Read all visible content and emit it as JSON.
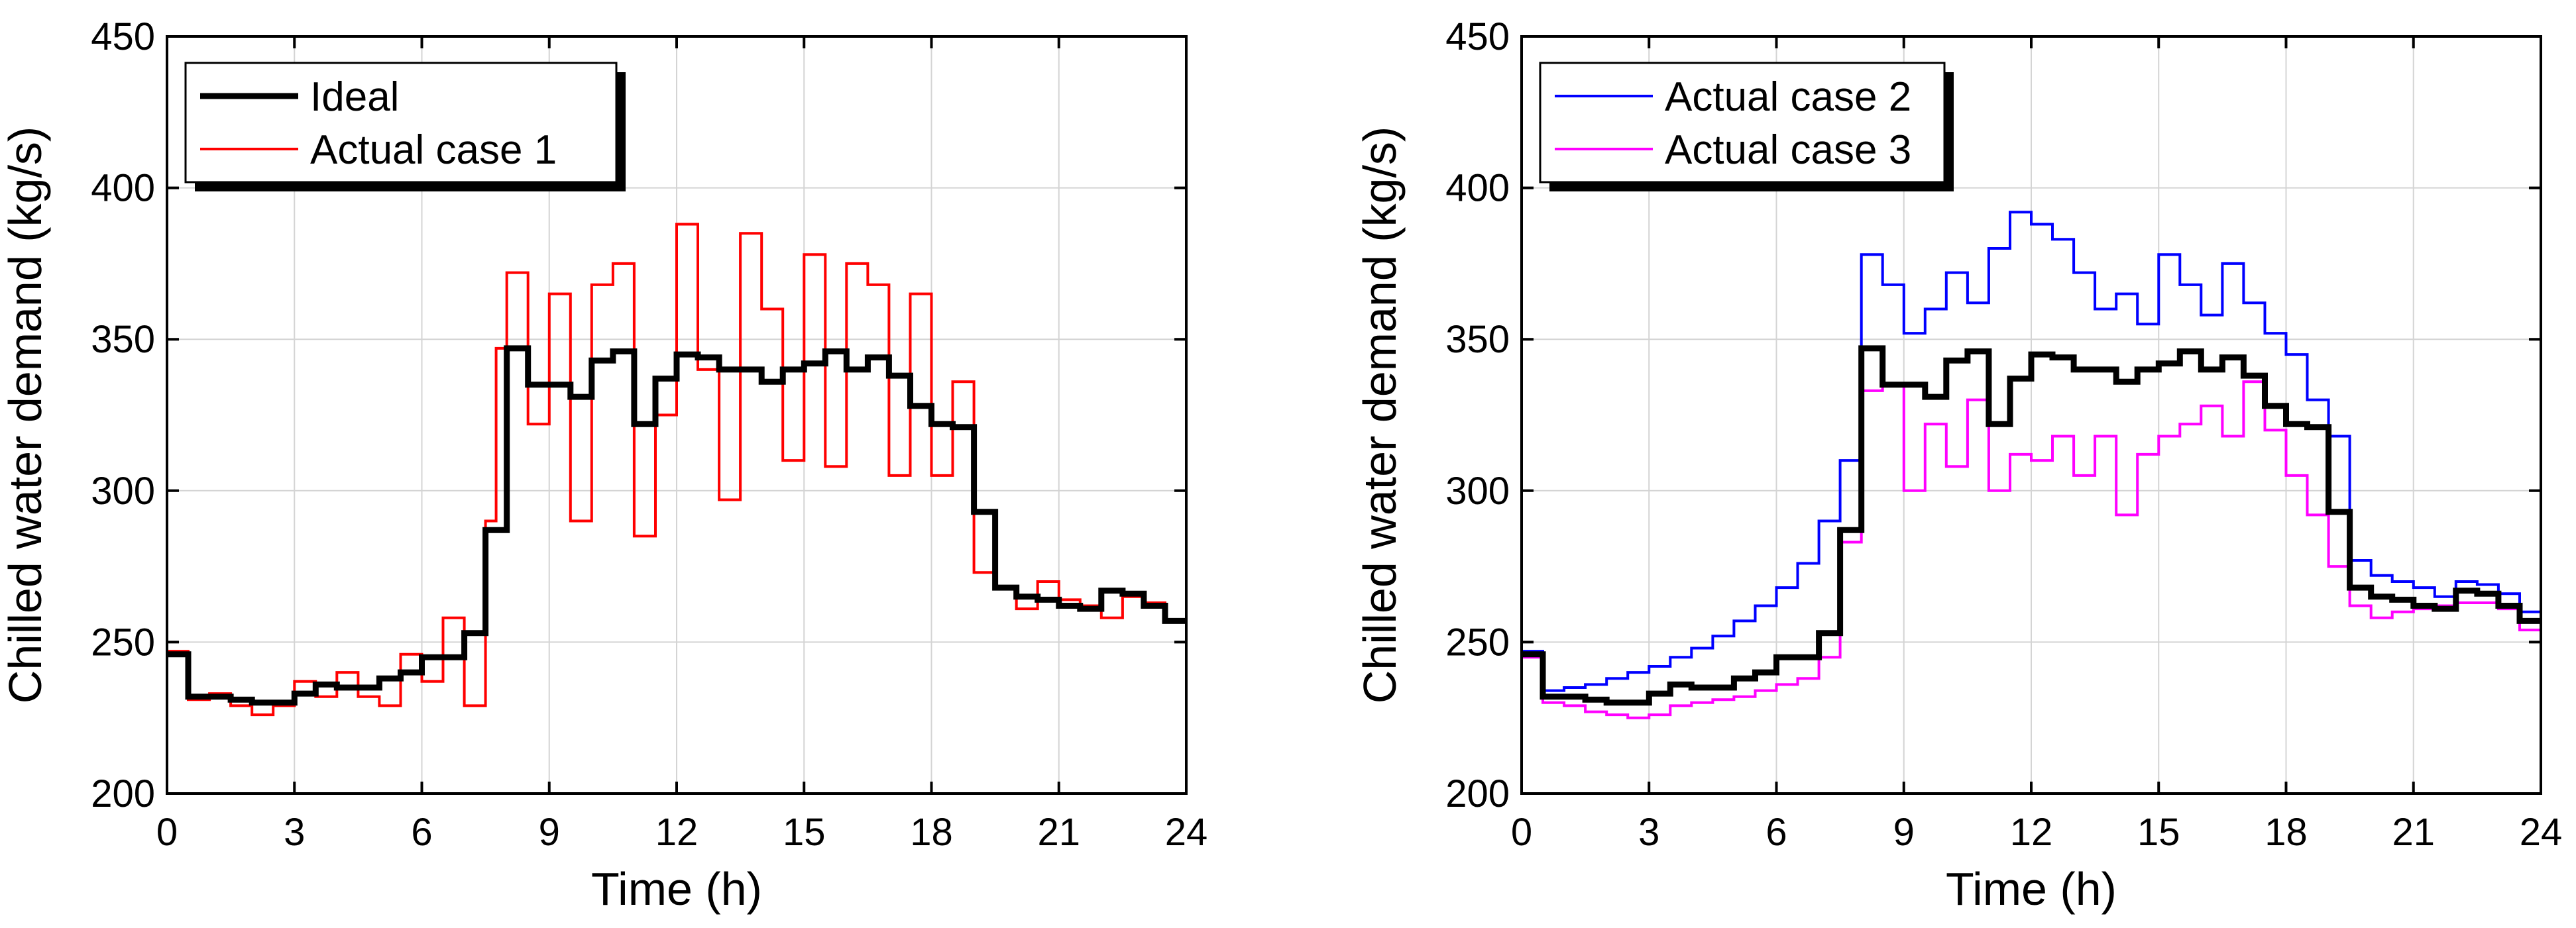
{
  "chart_data": [
    {
      "type": "line",
      "step": true,
      "xlabel": "Time (h)",
      "ylabel": "Chilled water demand (kg/s)",
      "xlim": [
        0,
        24
      ],
      "ylim": [
        200,
        450
      ],
      "xticks": [
        0,
        3,
        6,
        9,
        12,
        15,
        18,
        21,
        24
      ],
      "yticks": [
        200,
        250,
        300,
        350,
        400,
        450
      ],
      "grid": true,
      "legend_position": "top-left",
      "series": [
        {
          "name": "Ideal",
          "color": "#000000",
          "x": [
            0,
            0.5,
            1,
            1.5,
            2,
            2.5,
            3,
            3.5,
            4,
            4.5,
            5,
            5.5,
            6,
            6.5,
            7,
            7.5,
            8,
            8.5,
            9,
            9.5,
            10,
            10.5,
            11,
            11.5,
            12,
            12.5,
            13,
            13.5,
            14,
            14.5,
            15,
            15.5,
            16,
            16.5,
            17,
            17.5,
            18,
            18.5,
            19,
            19.5,
            20,
            20.5,
            21,
            21.5,
            22,
            22.5,
            23,
            23.5
          ],
          "y": [
            246,
            232,
            232,
            231,
            230,
            230,
            233,
            236,
            235,
            235,
            238,
            240,
            245,
            245,
            253,
            287,
            347,
            335,
            335,
            331,
            343,
            346,
            322,
            337,
            345,
            344,
            340,
            340,
            336,
            340,
            342,
            346,
            340,
            344,
            338,
            328,
            322,
            321,
            293,
            268,
            265,
            264,
            262,
            261,
            267,
            266,
            262,
            257
          ]
        },
        {
          "name": "Actual case 1",
          "color": "#ff0000",
          "x": [
            0,
            0.5,
            1,
            1.5,
            2,
            2.5,
            3,
            3.5,
            4,
            4.5,
            5,
            5.5,
            6,
            6.5,
            7,
            7.5,
            7.75,
            8,
            8.5,
            9,
            9.5,
            10,
            10.5,
            11,
            11.5,
            12,
            12.5,
            13,
            13.5,
            14,
            14.5,
            15,
            15.5,
            16,
            16.5,
            17,
            17.5,
            18,
            18.5,
            19,
            19.5,
            20,
            20.5,
            21,
            21.5,
            22,
            22.5,
            23,
            23.5
          ],
          "y": [
            247,
            231,
            233,
            229,
            226,
            229,
            237,
            232,
            240,
            232,
            229,
            246,
            237,
            258,
            229,
            290,
            347,
            372,
            322,
            365,
            290,
            368,
            375,
            285,
            325,
            388,
            340,
            297,
            385,
            360,
            310,
            378,
            308,
            375,
            368,
            305,
            365,
            305,
            336,
            273,
            268,
            261,
            270,
            264,
            262,
            258,
            265,
            263,
            257
          ]
        }
      ]
    },
    {
      "type": "line",
      "step": true,
      "xlabel": "Time (h)",
      "ylabel": "Chilled water demand (kg/s)",
      "xlim": [
        0,
        24
      ],
      "ylim": [
        200,
        450
      ],
      "xticks": [
        0,
        3,
        6,
        9,
        12,
        15,
        18,
        21,
        24
      ],
      "yticks": [
        200,
        250,
        300,
        350,
        400,
        450
      ],
      "grid": true,
      "legend_position": "top-left",
      "series": [
        {
          "name": "",
          "color": "#000000",
          "x": [
            0,
            0.5,
            1,
            1.5,
            2,
            2.5,
            3,
            3.5,
            4,
            4.5,
            5,
            5.5,
            6,
            6.5,
            7,
            7.5,
            8,
            8.5,
            9,
            9.5,
            10,
            10.5,
            11,
            11.5,
            12,
            12.5,
            13,
            13.5,
            14,
            14.5,
            15,
            15.5,
            16,
            16.5,
            17,
            17.5,
            18,
            18.5,
            19,
            19.5,
            20,
            20.5,
            21,
            21.5,
            22,
            22.5,
            23,
            23.5
          ],
          "y": [
            246,
            232,
            232,
            231,
            230,
            230,
            233,
            236,
            235,
            235,
            238,
            240,
            245,
            245,
            253,
            287,
            347,
            335,
            335,
            331,
            343,
            346,
            322,
            337,
            345,
            344,
            340,
            340,
            336,
            340,
            342,
            346,
            340,
            344,
            338,
            328,
            322,
            321,
            293,
            268,
            265,
            264,
            262,
            261,
            267,
            266,
            262,
            257
          ]
        },
        {
          "name": "Actual case 2",
          "color": "#0000ff",
          "x": [
            0,
            0.5,
            1,
            1.5,
            2,
            2.5,
            3,
            3.5,
            4,
            4.5,
            5,
            5.5,
            6,
            6.5,
            7,
            7.5,
            8,
            8.5,
            9,
            9.5,
            10,
            10.5,
            11,
            11.5,
            12,
            12.5,
            13,
            13.5,
            14,
            14.5,
            15,
            15.5,
            16,
            16.5,
            17,
            17.5,
            18,
            18.5,
            19,
            19.5,
            20,
            20.5,
            21,
            21.5,
            22,
            22.5,
            23,
            23.5
          ],
          "y": [
            247,
            234,
            235,
            236,
            238,
            240,
            242,
            245,
            248,
            252,
            257,
            262,
            268,
            276,
            290,
            310,
            378,
            368,
            352,
            360,
            372,
            362,
            380,
            392,
            388,
            383,
            372,
            360,
            365,
            355,
            378,
            368,
            358,
            375,
            362,
            352,
            345,
            330,
            318,
            277,
            272,
            270,
            268,
            265,
            270,
            269,
            266,
            260
          ]
        },
        {
          "name": "Actual case 3",
          "color": "#ff00ff",
          "x": [
            0,
            0.5,
            1,
            1.5,
            2,
            2.5,
            3,
            3.5,
            4,
            4.5,
            5,
            5.5,
            6,
            6.5,
            7,
            7.5,
            8,
            8.5,
            9,
            9.5,
            10,
            10.5,
            11,
            11.5,
            12,
            12.5,
            13,
            13.5,
            14,
            14.5,
            15,
            15.5,
            16,
            16.5,
            17,
            17.5,
            18,
            18.5,
            19,
            19.5,
            20,
            20.5,
            21,
            21.5,
            22,
            22.5,
            23,
            23.5
          ],
          "y": [
            245,
            230,
            229,
            227,
            226,
            225,
            226,
            229,
            230,
            231,
            232,
            234,
            236,
            238,
            245,
            283,
            333,
            335,
            300,
            322,
            308,
            330,
            300,
            312,
            310,
            318,
            305,
            318,
            292,
            312,
            318,
            322,
            328,
            318,
            336,
            320,
            305,
            292,
            275,
            262,
            258,
            260,
            261,
            262,
            263,
            263,
            261,
            254
          ]
        }
      ]
    }
  ]
}
